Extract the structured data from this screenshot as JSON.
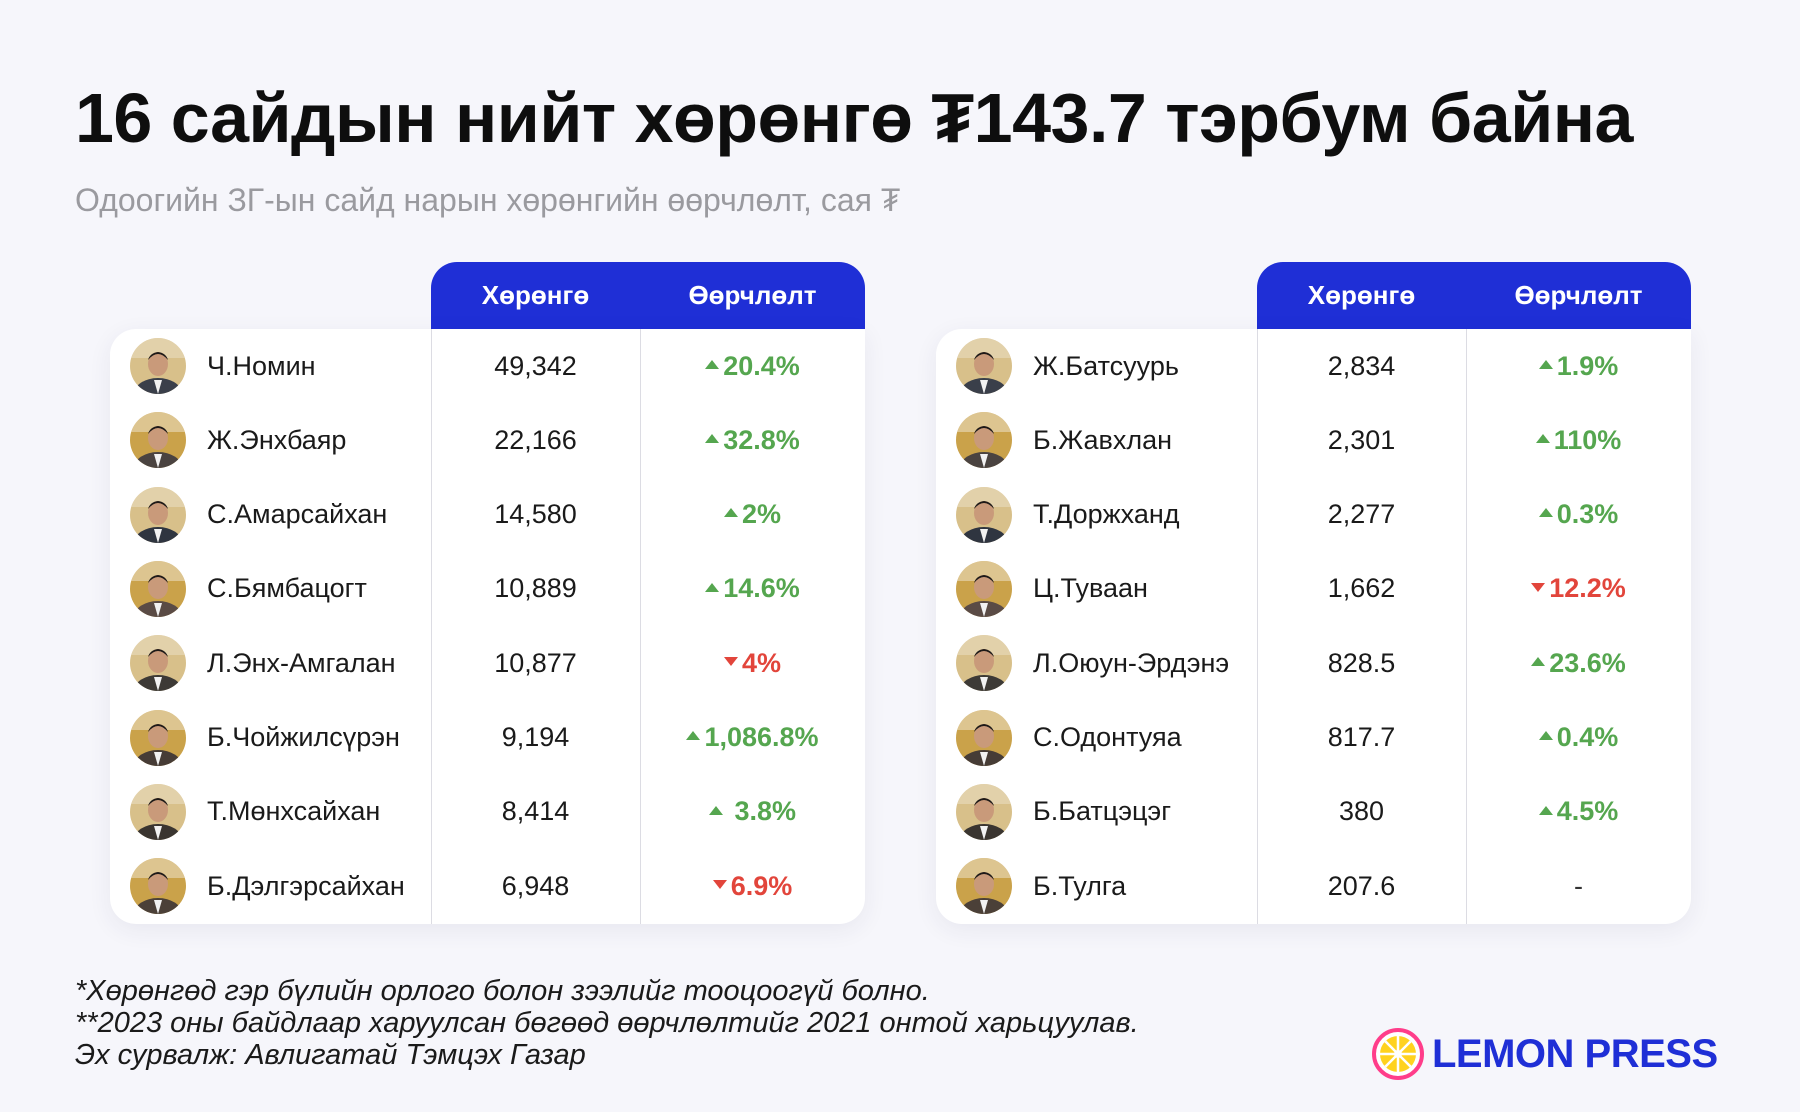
{
  "title": "16 сайдын нийт хөрөнгө ₮143.7 тэрбум байна",
  "subtitle": "Одоогийн ЗГ-ын сайд нарын хөрөнгийн өөрчлөлт, сая ₮",
  "colors": {
    "header": "#1f2fd6",
    "up": "#55a64f",
    "down": "#e2453b"
  },
  "left_table": {
    "col_asset": "Хөрөнгө",
    "col_change": "Өөрчлөлт",
    "rows": [
      {
        "name": "Ч.Номин",
        "asset": "49,342",
        "change": "20.4%",
        "dir": "up"
      },
      {
        "name": "Ж.Энхбаяр",
        "asset": "22,166",
        "change": "32.8%",
        "dir": "up"
      },
      {
        "name": "С.Амарсайхан",
        "asset": "14,580",
        "change": "2%",
        "dir": "up"
      },
      {
        "name": "С.Бямбацогт",
        "asset": "10,889",
        "change": "14.6%",
        "dir": "up"
      },
      {
        "name": "Л.Энх-Амгалан",
        "asset": "10,877",
        "change": "4%",
        "dir": "down"
      },
      {
        "name": "Б.Чойжилсүрэн",
        "asset": "9,194",
        "change": "1,086.8%",
        "dir": "up"
      },
      {
        "name": "Т.Мөнхсайхан",
        "asset": "8,414",
        "change": " 3.8%",
        "dir": "up"
      },
      {
        "name": "Б.Дэлгэрсайхан",
        "asset": "6,948",
        "change": "6.9%",
        "dir": "down"
      }
    ]
  },
  "right_table": {
    "col_asset": "Хөрөнгө",
    "col_change": "Өөрчлөлт",
    "rows": [
      {
        "name": "Ж.Батсуурь",
        "asset": "2,834",
        "change": "1.9%",
        "dir": "up"
      },
      {
        "name": "Б.Жавхлан",
        "asset": "2,301",
        "change": "110%",
        "dir": "up"
      },
      {
        "name": "Т.Доржханд",
        "asset": "2,277",
        "change": "0.3%",
        "dir": "up"
      },
      {
        "name": "Ц.Туваан",
        "asset": "1,662",
        "change": "12.2%",
        "dir": "down"
      },
      {
        "name": "Л.Оюун-Эрдэнэ",
        "asset": "828.5",
        "change": "23.6%",
        "dir": "up"
      },
      {
        "name": "С.Одонтуяа",
        "asset": "817.7",
        "change": "0.4%",
        "dir": "up"
      },
      {
        "name": "Б.Батцэцэг",
        "asset": "380",
        "change": "4.5%",
        "dir": "up"
      },
      {
        "name": "Б.Тулга",
        "asset": "207.6",
        "change": "-",
        "dir": "none"
      }
    ]
  },
  "chart_data": {
    "type": "table",
    "title": "16 сайдын нийт хөрөнгө ₮143.7 тэрбум байна",
    "subtitle": "Одоогийн ЗГ-ын сайд нарын хөрөнгийн өөрчлөлт, сая ₮",
    "columns": [
      "",
      "Хөрөнгө",
      "Өөрчлөлт"
    ],
    "rows": [
      [
        "Ч.Номин",
        49342,
        20.4
      ],
      [
        "Ж.Энхбаяр",
        22166,
        32.8
      ],
      [
        "С.Амарсайхан",
        14580,
        2
      ],
      [
        "С.Бямбацогт",
        10889,
        14.6
      ],
      [
        "Л.Энх-Амгалан",
        10877,
        -4
      ],
      [
        "Б.Чойжилсүрэн",
        9194,
        1086.8
      ],
      [
        "Т.Мөнхсайхан",
        8414,
        3.8
      ],
      [
        "Б.Дэлгэрсайхан",
        6948,
        -6.9
      ],
      [
        "Ж.Батсуурь",
        2834,
        1.9
      ],
      [
        "Б.Жавхлан",
        2301,
        110
      ],
      [
        "Т.Доржханд",
        2277,
        0.3
      ],
      [
        "Ц.Туваан",
        1662,
        -12.2
      ],
      [
        "Л.Оюун-Эрдэнэ",
        828.5,
        23.6
      ],
      [
        "С.Одонтуяа",
        817.7,
        0.4
      ],
      [
        "Б.Батцэцэг",
        380,
        4.5
      ],
      [
        "Б.Тулга",
        207.6,
        null
      ]
    ]
  },
  "notes": [
    "*Хөрөнгөд гэр бүлийн орлого болон зээлийг тооцоогүй болно.",
    "**2023 оны байдлаар харуулсан бөгөөд өөрчлөлтийг 2021 онтой харьцуулав.",
    "Эх сурвалж: Авлигатай Тэмцэх Газар"
  ],
  "logo": {
    "text": "LEMON PRESS",
    "icon": "lemon-slice-icon"
  }
}
